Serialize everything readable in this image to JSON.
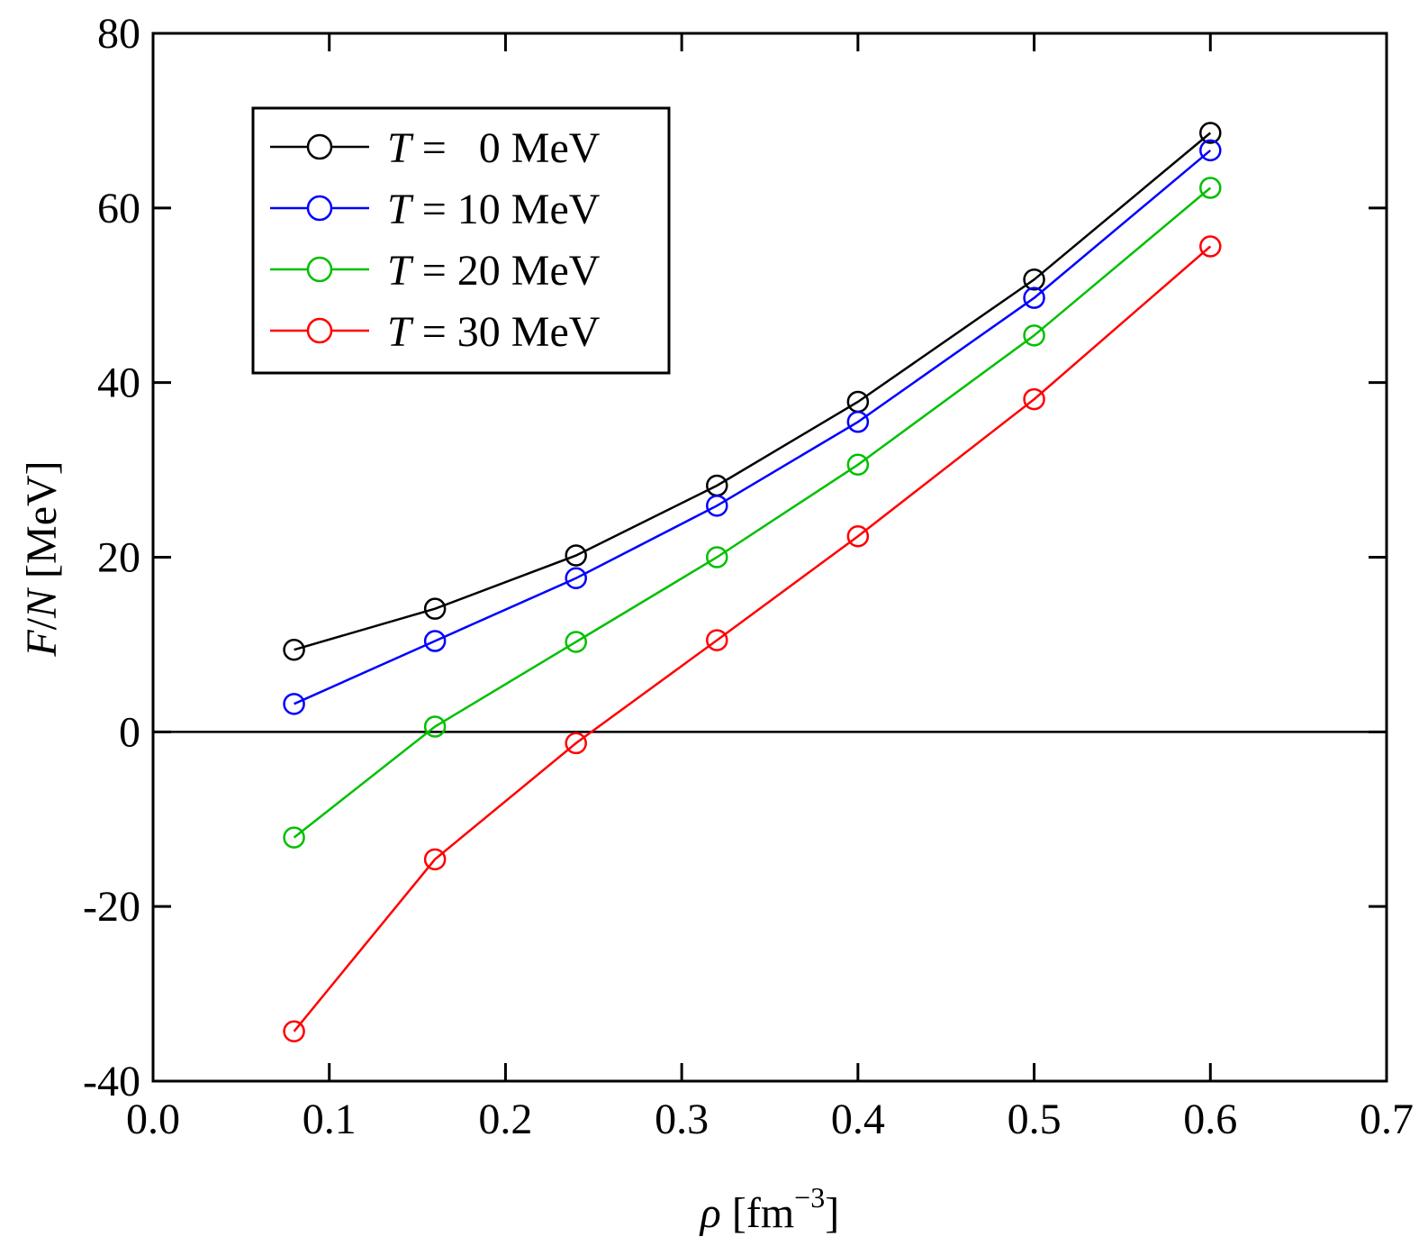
{
  "chart_data": {
    "type": "line",
    "xlabel_symbol": "ρ",
    "xlabel_unit": "fm",
    "xlabel_exp": "−3",
    "ylabel_italic_1": "F",
    "ylabel_slash": "/",
    "ylabel_italic_2": "N",
    "ylabel_unit": "[MeV]",
    "xlim": [
      0.0,
      0.7
    ],
    "ylim": [
      -40,
      80
    ],
    "xticks": [
      "0.0",
      "0.1",
      "0.2",
      "0.3",
      "0.4",
      "0.5",
      "0.6",
      "0.7"
    ],
    "yticks": [
      "-40",
      "-20",
      "0",
      "20",
      "40",
      "60",
      "80"
    ],
    "zero_line": true,
    "series": [
      {
        "name": "T =   0 MeV",
        "T_symbol": "T",
        "T_rest": " =   0 MeV",
        "color": "#000000",
        "x": [
          0.08,
          0.16,
          0.24,
          0.32,
          0.4,
          0.5,
          0.6
        ],
        "y": [
          9.4,
          14.1,
          20.2,
          28.2,
          37.8,
          51.8,
          68.6
        ]
      },
      {
        "name": "T = 10 MeV",
        "T_symbol": "T",
        "T_rest": " = 10 MeV",
        "color": "#0000ff",
        "x": [
          0.08,
          0.16,
          0.24,
          0.32,
          0.4,
          0.5,
          0.6
        ],
        "y": [
          3.2,
          10.4,
          17.6,
          25.9,
          35.5,
          49.7,
          66.6
        ]
      },
      {
        "name": "T = 20 MeV",
        "T_symbol": "T",
        "T_rest": " = 20 MeV",
        "color": "#00c000",
        "x": [
          0.08,
          0.16,
          0.24,
          0.32,
          0.4,
          0.5,
          0.6
        ],
        "y": [
          -12.1,
          0.6,
          10.3,
          20.0,
          30.6,
          45.4,
          62.3
        ]
      },
      {
        "name": "T = 30 MeV",
        "T_symbol": "T",
        "T_rest": " = 30 MeV",
        "color": "#ff0000",
        "x": [
          0.08,
          0.16,
          0.24,
          0.32,
          0.4,
          0.5,
          0.6
        ],
        "y": [
          -34.3,
          -14.6,
          -1.3,
          10.5,
          22.4,
          38.1,
          55.6
        ]
      }
    ],
    "legend_position": "top-left"
  }
}
